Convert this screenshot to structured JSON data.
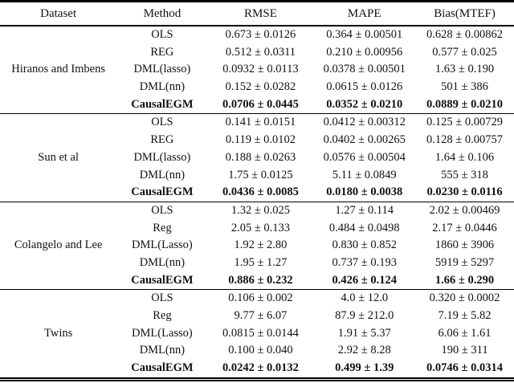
{
  "table": {
    "columns": [
      "Dataset",
      "Method",
      "RMSE",
      "MAPE",
      "Bias(MTEF)"
    ],
    "groups": [
      {
        "dataset": "Hiranos and Imbens",
        "rows": [
          {
            "method": "OLS",
            "rmse": "0.673 ± 0.0126",
            "mape": "0.364 ± 0.00501",
            "bias": "0.628 ± 0.00862",
            "bold": false
          },
          {
            "method": "REG",
            "rmse": "0.512 ± 0.0311",
            "mape": "0.210 ± 0.00956",
            "bias": "0.577 ± 0.025",
            "bold": false
          },
          {
            "method": "DML(lasso)",
            "rmse": "0.0932 ± 0.0113",
            "mape": "0.0378 ± 0.00501",
            "bias": "1.63 ± 0.190",
            "bold": false
          },
          {
            "method": "DML(nn)",
            "rmse": "0.152 ± 0.0282",
            "mape": "0.0615 ± 0.0126",
            "bias": "501 ± 386",
            "bold": false
          },
          {
            "method": "CausalEGM",
            "rmse": "0.0706 ± 0.0445",
            "mape": "0.0352 ± 0.0210",
            "bias": "0.0889 ± 0.0210",
            "bold": true
          }
        ]
      },
      {
        "dataset": "Sun et al",
        "rows": [
          {
            "method": "OLS",
            "rmse": "0.141 ± 0.0151",
            "mape": "0.0412 ± 0.00312",
            "bias": "0.125 ± 0.00729",
            "bold": false
          },
          {
            "method": "REG",
            "rmse": "0.119 ± 0.0102",
            "mape": "0.0402 ± 0.00265",
            "bias": "0.128 ± 0.00757",
            "bold": false
          },
          {
            "method": "DML(lasso)",
            "rmse": "0.188 ± 0.0263",
            "mape": "0.0576 ± 0.00504",
            "bias": "1.64 ± 0.106",
            "bold": false
          },
          {
            "method": "DML(nn)",
            "rmse": "1.75 ± 0.0125",
            "mape": "5.11 ± 0.0849",
            "bias": "555 ± 318",
            "bold": false
          },
          {
            "method": "CausalEGM",
            "rmse": "0.0436 ± 0.0085",
            "mape": "0.0180 ± 0.0038",
            "bias": "0.0230 ± 0.0116",
            "bold": true
          }
        ]
      },
      {
        "dataset": "Colangelo and Lee",
        "rows": [
          {
            "method": "OLS",
            "rmse": "1.32 ± 0.025",
            "mape": "1.27 ± 0.114",
            "bias": "2.02 ± 0.00469",
            "bold": false
          },
          {
            "method": "Reg",
            "rmse": "2.05 ± 0.133",
            "mape": "0.484 ± 0.0498",
            "bias": "2.17 ± 0.0446",
            "bold": false
          },
          {
            "method": "DML(Lasso)",
            "rmse": "1.92 ± 2.80",
            "mape": "0.830 ± 0.852",
            "bias": "1860 ± 3906",
            "bold": false
          },
          {
            "method": "DML(nn)",
            "rmse": "1.95 ± 1.27",
            "mape": "0.737 ± 0.193",
            "bias": "5919 ± 5297",
            "bold": false
          },
          {
            "method": "CausalEGM",
            "rmse": "0.886 ± 0.232",
            "mape": "0.426 ± 0.124",
            "bias": "1.66 ± 0.290",
            "bold": true
          }
        ]
      },
      {
        "dataset": "Twins",
        "rows": [
          {
            "method": "OLS",
            "rmse": "0.106 ± 0.002",
            "mape": "4.0 ± 12.0",
            "bias": "0.320 ± 0.0002",
            "bold": false
          },
          {
            "method": "Reg",
            "rmse": "9.77 ± 6.07",
            "mape": "87.9 ± 212.0",
            "bias": "7.19 ± 5.82",
            "bold": false
          },
          {
            "method": "DML(Lasso)",
            "rmse": "0.0815 ± 0.0144",
            "mape": "1.91 ± 5.37",
            "bias": "6.06 ± 1.61",
            "bold": false
          },
          {
            "method": "DML(nn)",
            "rmse": "0.100 ± 0.040",
            "mape": "2.92 ± 8.28",
            "bias": "190 ± 311",
            "bold": false
          },
          {
            "method": "CausalEGM",
            "rmse": "0.0242 ± 0.0132",
            "mape": "0.499 ± 1.39",
            "bias": "0.0746 ± 0.0314",
            "bold": true
          }
        ]
      }
    ]
  }
}
